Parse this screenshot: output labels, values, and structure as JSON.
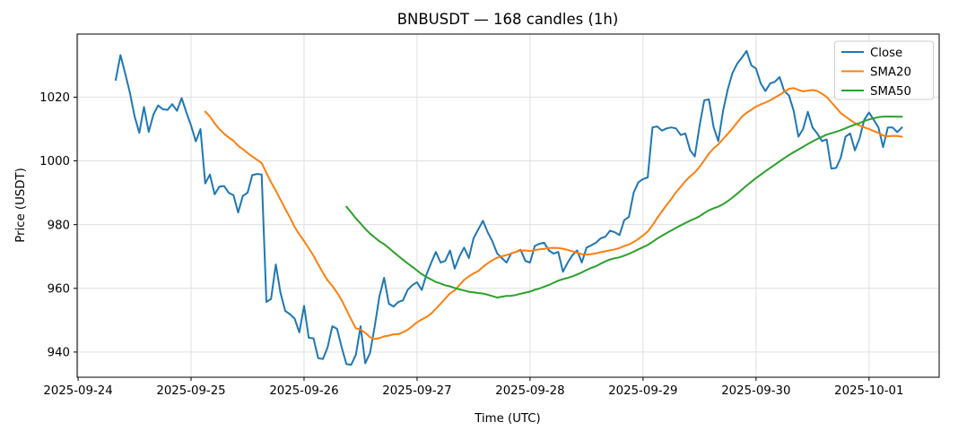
{
  "chart_data": {
    "type": "line",
    "title": "BNBUSDT — 168 candles (1h)",
    "xlabel": "Time (UTC)",
    "ylabel": "Price (USDT)",
    "symbol": "BNBUSDT",
    "candle_count": 168,
    "interval": "1h",
    "x_start": "2025-09-24 08:00 UTC",
    "grid": true,
    "legend_position": "upper right",
    "xlim_hours_from_start": [
      -8.2,
      174.9
    ],
    "ylim": [
      932.1,
      1039.8
    ],
    "y_ticks": [
      940,
      960,
      980,
      1000,
      1020
    ],
    "x_ticks": [
      {
        "hour": -8,
        "label": "2025-09-24"
      },
      {
        "hour": 16,
        "label": "2025-09-25"
      },
      {
        "hour": 40,
        "label": "2025-09-26"
      },
      {
        "hour": 64,
        "label": "2025-09-27"
      },
      {
        "hour": 88,
        "label": "2025-09-28"
      },
      {
        "hour": 112,
        "label": "2025-09-29"
      },
      {
        "hour": 136,
        "label": "2025-09-30"
      },
      {
        "hour": 160,
        "label": "2025-10-01"
      }
    ],
    "legend": [
      {
        "label": "Close",
        "color": "#1f77b4"
      },
      {
        "label": "SMA20",
        "color": "#ff7f0e"
      },
      {
        "label": "SMA50",
        "color": "#2ca02c"
      }
    ],
    "series": [
      {
        "name": "Close",
        "color": "#1f77b4",
        "values": [
          1025.4,
          1033.2,
          1027.5,
          1021.4,
          1014.0,
          1008.8,
          1016.9,
          1009.1,
          1014.5,
          1017.4,
          1016.2,
          1016.0,
          1017.8,
          1015.7,
          1019.7,
          1015.2,
          1011.1,
          1006.1,
          1010.0,
          992.9,
          995.7,
          989.5,
          991.9,
          992.1,
          990.0,
          989.2,
          983.8,
          989.0,
          990.0,
          995.5,
          995.9,
          995.7,
          955.7,
          956.7,
          967.5,
          958.6,
          952.9,
          951.9,
          950.5,
          946.2,
          954.5,
          944.5,
          944.3,
          938.1,
          937.8,
          941.5,
          948.1,
          947.3,
          941.4,
          936.2,
          936.0,
          939.1,
          948.1,
          936.5,
          939.7,
          948.0,
          957.5,
          963.3,
          955.2,
          954.3,
          955.7,
          956.2,
          959.5,
          961.0,
          961.9,
          959.5,
          964.3,
          968.0,
          971.4,
          968.1,
          968.6,
          971.9,
          966.2,
          970.0,
          972.8,
          969.5,
          975.7,
          978.5,
          981.2,
          977.6,
          974.8,
          971.0,
          969.5,
          968.1,
          971.0,
          971.4,
          972.1,
          968.6,
          968.1,
          973.3,
          974.0,
          974.3,
          971.9,
          970.9,
          971.4,
          965.2,
          968.1,
          970.4,
          971.9,
          968.1,
          972.8,
          973.5,
          974.3,
          975.7,
          976.2,
          978.1,
          977.6,
          976.7,
          981.4,
          982.4,
          990.0,
          993.3,
          994.3,
          994.8,
          1010.5,
          1010.8,
          1009.5,
          1010.2,
          1010.5,
          1010.2,
          1008.1,
          1008.6,
          1003.3,
          1001.4,
          1011.0,
          1019.0,
          1019.3,
          1010.5,
          1006.2,
          1015.7,
          1022.4,
          1027.6,
          1030.5,
          1032.4,
          1034.5,
          1030.0,
          1029.0,
          1024.3,
          1021.9,
          1024.3,
          1024.8,
          1026.3,
          1021.9,
          1020.5,
          1015.7,
          1007.6,
          1010.0,
          1015.4,
          1010.5,
          1008.6,
          1006.2,
          1006.7,
          997.6,
          997.8,
          1001.0,
          1007.6,
          1008.6,
          1003.3,
          1007.1,
          1012.9,
          1015.2,
          1012.9,
          1010.5,
          1004.3,
          1010.5,
          1010.5,
          1009.0,
          1010.5
        ]
      },
      {
        "name": "SMA20",
        "color": "#ff7f0e",
        "derived": {
          "type": "sma",
          "period": 20,
          "of": "Close"
        }
      },
      {
        "name": "SMA50",
        "color": "#2ca02c",
        "derived": {
          "type": "sma",
          "period": 50,
          "of": "Close"
        }
      }
    ]
  },
  "style": {
    "grid_color": "#e0e0e0",
    "spine_color": "#000000",
    "background": "#ffffff",
    "legend_border": "#cccccc",
    "line_width": 2
  }
}
